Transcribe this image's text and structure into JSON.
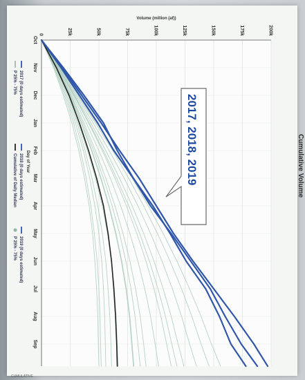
{
  "chart_data": {
    "type": "line",
    "title": "Cumulative Volume",
    "xlabel": "Day of Year",
    "ylabel": "Volume (million (af))",
    "x_ticks": [
      "Oct",
      "Nov",
      "Dec",
      "Jan",
      "Feb",
      "Mar",
      "Apr",
      "May",
      "Jun",
      "Jul",
      "Aug",
      "Sep"
    ],
    "y_ticks": [
      "0",
      "25k",
      "50k",
      "75k",
      "100k",
      "125k",
      "150k",
      "175k",
      "200k"
    ],
    "ylim": [
      0,
      200000
    ],
    "grid": true,
    "callout": "2017, 2018, 2019",
    "legend": [
      {
        "label": "2017 (0 days estimated)",
        "color": "#2f56a8",
        "marker": "line"
      },
      {
        "label": "2018 (0 days estimated)",
        "color": "#2f56a8",
        "marker": "line"
      },
      {
        "label": "2019 (0 days estimated)",
        "color": "#2f56a8",
        "marker": "line"
      },
      {
        "label": "P 25% - 75%",
        "color": "#aab3b0",
        "marker": "line"
      },
      {
        "label": "Cumulative of Daily Median",
        "color": "#222222",
        "marker": "line"
      },
      {
        "label": "P 25% - 75%",
        "color": "#8fb8a6",
        "marker": "dot"
      }
    ],
    "footer": "CUMULATIVE",
    "series": [
      {
        "name": "2017",
        "role": "highlight",
        "color": "#2f56a8",
        "x_month": [
          0,
          1,
          2,
          3,
          4,
          5,
          6,
          7,
          8,
          9,
          10,
          11,
          11.8
        ],
        "values": [
          0,
          18000,
          35000,
          52000,
          68000,
          85000,
          100000,
          115000,
          132000,
          150000,
          168000,
          185000,
          197000
        ]
      },
      {
        "name": "2018",
        "role": "highlight",
        "color": "#2f56a8",
        "x_month": [
          0,
          1,
          2,
          3,
          4,
          5,
          6,
          7,
          8,
          9,
          10,
          11,
          11.8
        ],
        "values": [
          0,
          17000,
          33000,
          49000,
          63000,
          80000,
          95000,
          113000,
          130000,
          147000,
          160000,
          174000,
          188000
        ]
      },
      {
        "name": "2019",
        "role": "highlight",
        "color": "#2f56a8",
        "x_month": [
          0,
          1,
          2,
          3,
          4,
          5,
          6,
          7,
          8,
          9,
          10,
          11,
          11.8
        ],
        "values": [
          0,
          19000,
          37000,
          54000,
          66000,
          80000,
          97000,
          112000,
          126000,
          143000,
          155000,
          165000,
          178000
        ]
      },
      {
        "name": "Cumulative of Daily Median",
        "role": "median",
        "color": "#222222",
        "x_month": [
          0,
          1,
          2,
          3,
          4,
          5,
          6,
          7,
          8,
          9,
          10,
          11,
          11.8
        ],
        "values": [
          0,
          13000,
          24000,
          33000,
          41000,
          48000,
          54000,
          58000,
          61000,
          63000,
          64500,
          65500,
          66000
        ]
      },
      {
        "name": "",
        "role": "background",
        "color": "#aacbbc",
        "x_month": [
          0,
          1,
          2,
          3,
          4,
          5,
          6,
          7,
          8,
          9,
          10,
          11,
          11.8
        ],
        "values": [
          0,
          14000,
          26000,
          37000,
          47000,
          56000,
          64000,
          71000,
          77000,
          82000,
          86000,
          89000,
          91000
        ]
      },
      {
        "name": "",
        "role": "background",
        "color": "#aacbbc",
        "x_month": [
          0,
          1,
          2,
          3,
          4,
          5,
          6,
          7,
          8,
          9,
          10,
          11,
          11.8
        ],
        "values": [
          0,
          15000,
          28000,
          41000,
          53000,
          64000,
          74000,
          83000,
          91000,
          98000,
          104000,
          109000,
          113000
        ]
      },
      {
        "name": "",
        "role": "background",
        "color": "#aacbbc",
        "x_month": [
          0,
          1,
          2,
          3,
          4,
          5,
          6,
          7,
          8,
          9,
          10,
          11,
          11.8
        ],
        "values": [
          0,
          16000,
          30000,
          45000,
          59000,
          72000,
          84000,
          95000,
          105000,
          114000,
          122000,
          129000,
          135000
        ]
      },
      {
        "name": "",
        "role": "background",
        "color": "#aacbbc",
        "x_month": [
          0,
          1,
          2,
          3,
          4,
          5,
          6,
          7,
          8,
          9,
          10,
          11,
          11.8
        ],
        "values": [
          0,
          12000,
          22000,
          31000,
          38000,
          44000,
          49000,
          53000,
          56000,
          58000,
          59500,
          60500,
          61000
        ]
      },
      {
        "name": "",
        "role": "background",
        "color": "#aacbbc",
        "x_month": [
          0,
          1,
          2,
          3,
          4,
          5,
          6,
          7,
          8,
          9,
          10,
          11,
          11.8
        ],
        "values": [
          0,
          11000,
          20000,
          28000,
          34000,
          39000,
          43000,
          46000,
          48500,
          50000,
          51000,
          51500,
          52000
        ]
      },
      {
        "name": "",
        "role": "background",
        "color": "#aacbbc",
        "x_month": [
          0,
          1,
          2,
          3,
          4,
          5,
          6,
          7,
          8,
          9,
          10,
          11,
          11.8
        ],
        "values": [
          0,
          14500,
          27000,
          39000,
          50000,
          60000,
          69000,
          77000,
          84000,
          90000,
          95000,
          99000,
          102000
        ]
      },
      {
        "name": "",
        "role": "background",
        "color": "#aacbbc",
        "x_month": [
          0,
          1,
          2,
          3,
          4,
          5,
          6,
          7,
          8,
          9,
          10,
          11,
          11.8
        ],
        "values": [
          0,
          16500,
          31000,
          47000,
          62000,
          76000,
          89000,
          101000,
          112000,
          122000,
          131000,
          139000,
          146000
        ]
      },
      {
        "name": "",
        "role": "background",
        "color": "#aacbbc",
        "x_month": [
          0,
          1,
          2,
          3,
          4,
          5,
          6,
          7,
          8,
          9,
          10,
          11,
          11.8
        ],
        "values": [
          0,
          13500,
          25000,
          35000,
          44000,
          52000,
          59000,
          65000,
          70000,
          74000,
          77000,
          79000,
          80500
        ]
      },
      {
        "name": "",
        "role": "background",
        "color": "#aacbbc",
        "x_month": [
          0,
          1,
          2,
          3,
          4,
          5,
          6,
          7,
          8,
          9,
          10,
          11,
          11.8
        ],
        "values": [
          0,
          12500,
          23000,
          32000,
          40000,
          47000,
          53000,
          57500,
          61000,
          63500,
          65000,
          66000,
          66800
        ]
      },
      {
        "name": "",
        "role": "background",
        "color": "#aacbbc",
        "x_month": [
          0,
          1,
          2,
          3,
          4,
          5,
          6,
          7,
          8,
          9,
          10,
          11,
          11.8
        ],
        "values": [
          0,
          15500,
          29000,
          43000,
          56000,
          68000,
          79000,
          89000,
          98000,
          106000,
          113000,
          119000,
          124000
        ]
      },
      {
        "name": "",
        "role": "background",
        "color": "#aacbbc",
        "x_month": [
          0,
          1,
          2,
          3,
          4,
          5,
          6,
          7,
          8,
          9,
          10,
          11,
          11.8
        ],
        "values": [
          0,
          11500,
          21000,
          29500,
          36500,
          42000,
          46500,
          50000,
          52500,
          54000,
          55000,
          55600,
          56000
        ]
      },
      {
        "name": "",
        "role": "background",
        "color": "#aacbbc",
        "x_month": [
          0,
          1,
          2,
          3,
          4,
          5,
          6,
          7,
          8,
          9,
          10,
          11,
          11.8
        ],
        "values": [
          0,
          17000,
          32000,
          48000,
          64000,
          79000,
          93000,
          106000,
          118000,
          129000,
          139000,
          148000,
          156000
        ]
      },
      {
        "name": "",
        "role": "background",
        "color": "#aacbbc",
        "x_month": [
          0,
          1,
          2,
          3,
          4,
          5,
          6,
          7,
          8,
          9,
          10,
          11,
          11.8
        ],
        "values": [
          0,
          14000,
          25500,
          36000,
          45500,
          54000,
          61500,
          68000,
          73500,
          78000,
          81500,
          84000,
          86000
        ]
      },
      {
        "name": "",
        "role": "background",
        "color": "#aacbbc",
        "x_month": [
          0,
          1,
          2,
          3,
          4,
          5,
          6,
          7,
          8,
          9,
          10,
          11,
          11.8
        ],
        "values": [
          0,
          13000,
          24500,
          34500,
          43500,
          51500,
          58500,
          64500,
          69500,
          73500,
          76500,
          78500,
          80000
        ]
      },
      {
        "name": "",
        "role": "background",
        "color": "#aacbbc",
        "x_month": [
          0,
          1,
          2,
          3,
          4,
          5,
          6,
          7,
          8,
          9,
          10,
          11,
          11.8
        ],
        "values": [
          0,
          15000,
          28500,
          41500,
          54000,
          65500,
          76000,
          85500,
          94000,
          101500,
          108000,
          113500,
          118000
        ]
      },
      {
        "name": "",
        "role": "background",
        "color": "#aacbbc",
        "x_month": [
          0,
          1,
          2,
          3,
          4,
          5,
          6,
          7,
          8,
          9,
          10,
          11,
          11.8
        ],
        "values": [
          0,
          10500,
          19000,
          26500,
          32500,
          37500,
          41500,
          44500,
          46500,
          48000,
          49000,
          49500,
          50000
        ]
      }
    ]
  }
}
